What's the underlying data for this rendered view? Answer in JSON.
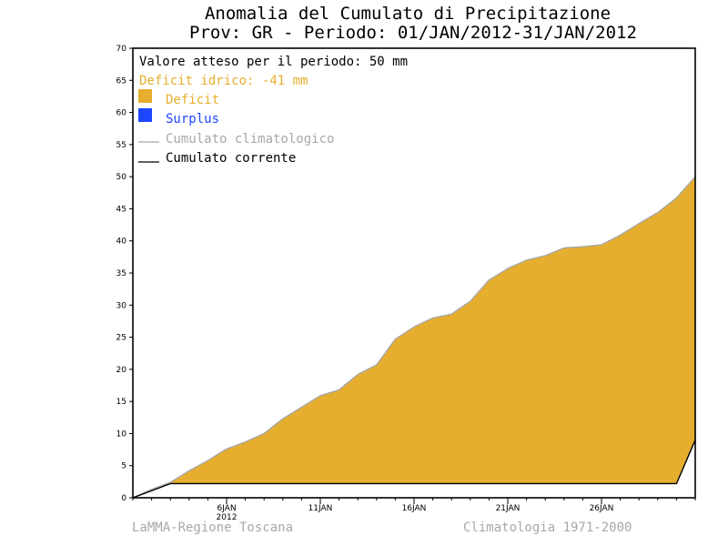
{
  "chart_data": {
    "type": "area",
    "title": "Anomalia del Cumulato di Precipitazione",
    "subtitle": "Prov: GR - Periodo: 01/JAN/2012-31/JAN/2012",
    "ylim": [
      0,
      70
    ],
    "yticks": [
      0,
      5,
      10,
      15,
      20,
      25,
      30,
      35,
      40,
      45,
      50,
      55,
      60,
      65,
      70
    ],
    "xlim": [
      1,
      31
    ],
    "xticks": [
      {
        "day": 6,
        "label": "6JAN",
        "sublabel": "2012"
      },
      {
        "day": 11,
        "label": "11JAN",
        "sublabel": ""
      },
      {
        "day": 16,
        "label": "16JAN",
        "sublabel": ""
      },
      {
        "day": 21,
        "label": "21JAN",
        "sublabel": ""
      },
      {
        "day": 26,
        "label": "26JAN",
        "sublabel": ""
      }
    ],
    "colors": {
      "deficit": "#e6ae2e",
      "surplus": "#1e46ff",
      "climatological": "#a8a8a8",
      "current": "#000000"
    },
    "series": [
      {
        "name": "Cumulato climatologico",
        "x": [
          1,
          2,
          3,
          4,
          5,
          6,
          7,
          8,
          9,
          10,
          11,
          12,
          13,
          14,
          15,
          16,
          17,
          18,
          19,
          20,
          21,
          22,
          23,
          24,
          25,
          26,
          27,
          28,
          29,
          30,
          31
        ],
        "values": [
          0,
          1.3,
          2.4,
          4.2,
          5.8,
          7.6,
          8.7,
          10.0,
          12.3,
          14.1,
          15.9,
          16.8,
          19.2,
          20.7,
          24.7,
          26.6,
          28.0,
          28.6,
          30.6,
          33.9,
          35.7,
          37.0,
          37.7,
          38.9,
          39.1,
          39.4,
          40.9,
          42.7,
          44.4,
          46.7,
          50.0
        ]
      },
      {
        "name": "Cumulato corrente",
        "x": [
          1,
          2,
          3,
          4,
          5,
          6,
          7,
          8,
          9,
          10,
          11,
          12,
          13,
          14,
          15,
          16,
          17,
          18,
          19,
          20,
          21,
          22,
          23,
          24,
          25,
          26,
          27,
          28,
          29,
          30,
          31
        ],
        "values": [
          0,
          1.1,
          2.2,
          2.2,
          2.2,
          2.2,
          2.2,
          2.2,
          2.2,
          2.2,
          2.2,
          2.2,
          2.2,
          2.2,
          2.2,
          2.2,
          2.2,
          2.2,
          2.2,
          2.2,
          2.2,
          2.2,
          2.2,
          2.2,
          2.2,
          2.2,
          2.2,
          2.2,
          2.2,
          2.2,
          9.0
        ]
      }
    ]
  },
  "legend": {
    "expected": "Valore atteso per il periodo: 50 mm",
    "deficit_text": "Deficit idrico: -41 mm",
    "deficit": "Deficit",
    "surplus": "Surplus",
    "climatological": "Cumulato climatologico",
    "current": "Cumulato corrente"
  },
  "footer": {
    "left": "LaMMA-Regione Toscana",
    "right": "Climatologia 1971-2000"
  }
}
